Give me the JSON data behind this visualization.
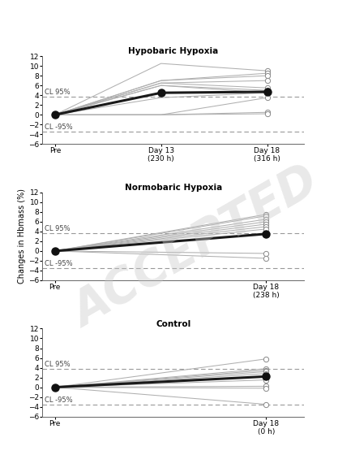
{
  "panels": [
    {
      "title": "Hypobaric Hypoxia",
      "x_positions": [
        0,
        1,
        2
      ],
      "x_labels": [
        "Pre",
        "Day 13\n(230 h)",
        "Day 18\n(316 h)"
      ],
      "individual_lines": [
        [
          0,
          10.5,
          9.0
        ],
        [
          0,
          7.0,
          8.5
        ],
        [
          0,
          7.0,
          8.0
        ],
        [
          0,
          6.5,
          7.0
        ],
        [
          0,
          6.5,
          5.5
        ],
        [
          0,
          6.0,
          5.0
        ],
        [
          0,
          6.0,
          4.5
        ],
        [
          0,
          3.5,
          4.5
        ],
        [
          0,
          0.0,
          3.5
        ],
        [
          0,
          0.0,
          0.5
        ],
        [
          0,
          0.0,
          0.2
        ]
      ],
      "mean_line": [
        0,
        4.5,
        4.7
      ],
      "cl_95": 3.7,
      "cl_neg95": -3.5,
      "has_day13": true,
      "xlim": [
        -0.12,
        2.35
      ]
    },
    {
      "title": "Normobaric Hypoxia",
      "x_positions": [
        0,
        1
      ],
      "x_labels": [
        "Pre",
        "Day 18\n(238 h)"
      ],
      "individual_lines": [
        [
          0,
          7.5
        ],
        [
          0,
          7.2
        ],
        [
          0,
          6.5
        ],
        [
          0,
          6.0
        ],
        [
          0,
          5.5
        ],
        [
          0,
          5.0
        ],
        [
          0,
          4.5
        ],
        [
          0,
          -0.5
        ],
        [
          0,
          -1.5
        ]
      ],
      "mean_line": [
        0,
        3.5
      ],
      "cl_95": 3.7,
      "cl_neg95": -3.5,
      "has_day13": false,
      "xlim": [
        -0.06,
        1.18
      ]
    },
    {
      "title": "Control",
      "x_positions": [
        0,
        1
      ],
      "x_labels": [
        "Pre",
        "Day 18\n(0 h)"
      ],
      "individual_lines": [
        [
          0,
          5.8
        ],
        [
          0,
          3.8
        ],
        [
          0,
          3.5
        ],
        [
          0,
          3.2
        ],
        [
          0,
          2.8
        ],
        [
          0,
          2.3
        ],
        [
          0,
          1.5
        ],
        [
          0,
          0.2
        ],
        [
          0,
          -0.2
        ],
        [
          0,
          -3.5
        ]
      ],
      "mean_line": [
        0,
        2.2
      ],
      "cl_95": 3.7,
      "cl_neg95": -3.5,
      "has_day13": false,
      "xlim": [
        -0.06,
        1.18
      ]
    }
  ],
  "ylim": [
    -6,
    12
  ],
  "yticks": [
    -6,
    -4,
    -2,
    0,
    2,
    4,
    6,
    8,
    10,
    12
  ],
  "ylabel": "Changes in Hbmass (%)",
  "line_color_individual": "#b0b0b0",
  "line_color_mean": "#1a1a1a",
  "marker_open_face": "#ffffff",
  "marker_open_edge": "#888888",
  "marker_filled_face": "#111111",
  "cl_label_95": "CL 95%",
  "cl_label_neg95": "CL -95%",
  "bg_color": "#ffffff",
  "watermark_text": "ACCEPTED",
  "watermark_color": "#c8c8c8",
  "watermark_alpha": 0.4,
  "watermark_fontsize": 42,
  "watermark_rotation": 30
}
